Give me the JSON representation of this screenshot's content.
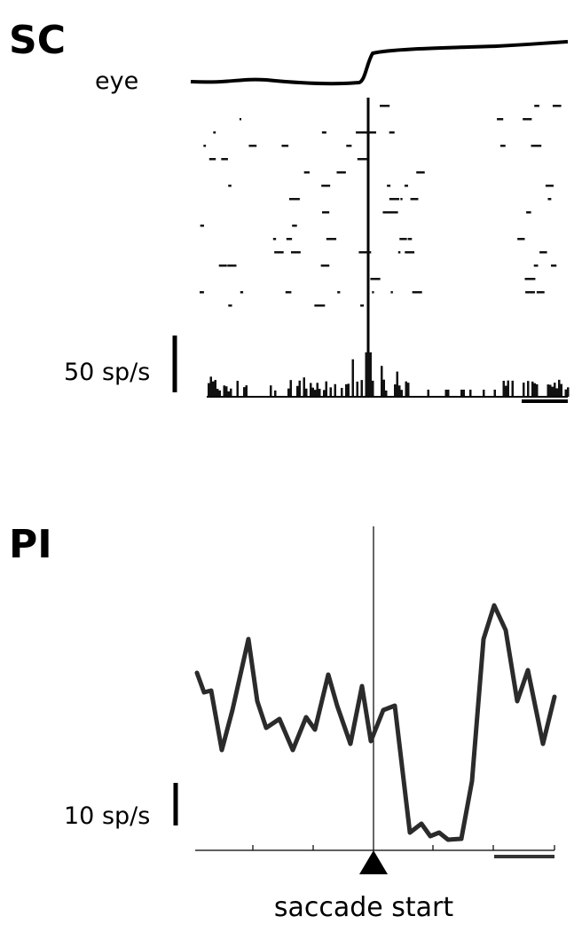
{
  "panels": [
    {
      "label": "SC",
      "eye_label": "eye",
      "scale_label": "50 sp/s"
    },
    {
      "label": "PI",
      "scale_label": "10 sp/s",
      "event_label": "saccade start"
    }
  ]
}
